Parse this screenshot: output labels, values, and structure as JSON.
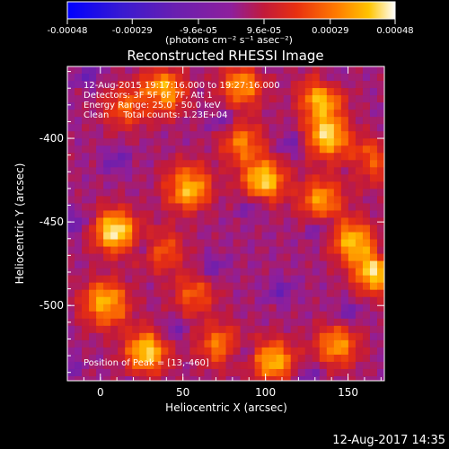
{
  "chart_data": {
    "type": "heatmap",
    "title": "Reconstructed RHESSI Image",
    "xlabel": "Heliocentric X (arcsec)",
    "ylabel": "Heliocentric Y (arcsec)",
    "xlim": [
      -20,
      172
    ],
    "ylim": [
      -545,
      -357
    ],
    "x_ticks": [
      0,
      50,
      100,
      150
    ],
    "y_ticks": [
      -400,
      -450,
      -500
    ],
    "colorbar": {
      "min": -0.00048,
      "max": 0.00048,
      "ticks": [
        -0.00048,
        -0.00029,
        -9.6e-05,
        9.6e-05,
        0.00029,
        0.00048
      ],
      "tick_labels": [
        "-0.00048",
        "-0.00029",
        "-9.6e-05",
        "9.6e-05",
        "0.00029",
        "0.00048"
      ],
      "units_label": "(photons cm⁻² s⁻¹ asec⁻²)",
      "colormap": [
        "#0000ff",
        "#5a1aa6",
        "#8e1f9c",
        "#d62a1e",
        "#ff6a00",
        "#ffc400",
        "#ffffff"
      ]
    },
    "annotations": [
      "12-Aug-2015 19:17:16.000 to 19:27:16.000",
      "Detectors: 3F 5F 6F 7F, Att 1",
      "Energy Range: 25.0 - 50.0 keV",
      "Clean     Total counts: 1.23E+04",
      "Position of Peak = [13,-460]"
    ],
    "peak": {
      "x": 13,
      "y": -460
    },
    "footer_timestamp": "12-Aug-2017 14:35"
  }
}
